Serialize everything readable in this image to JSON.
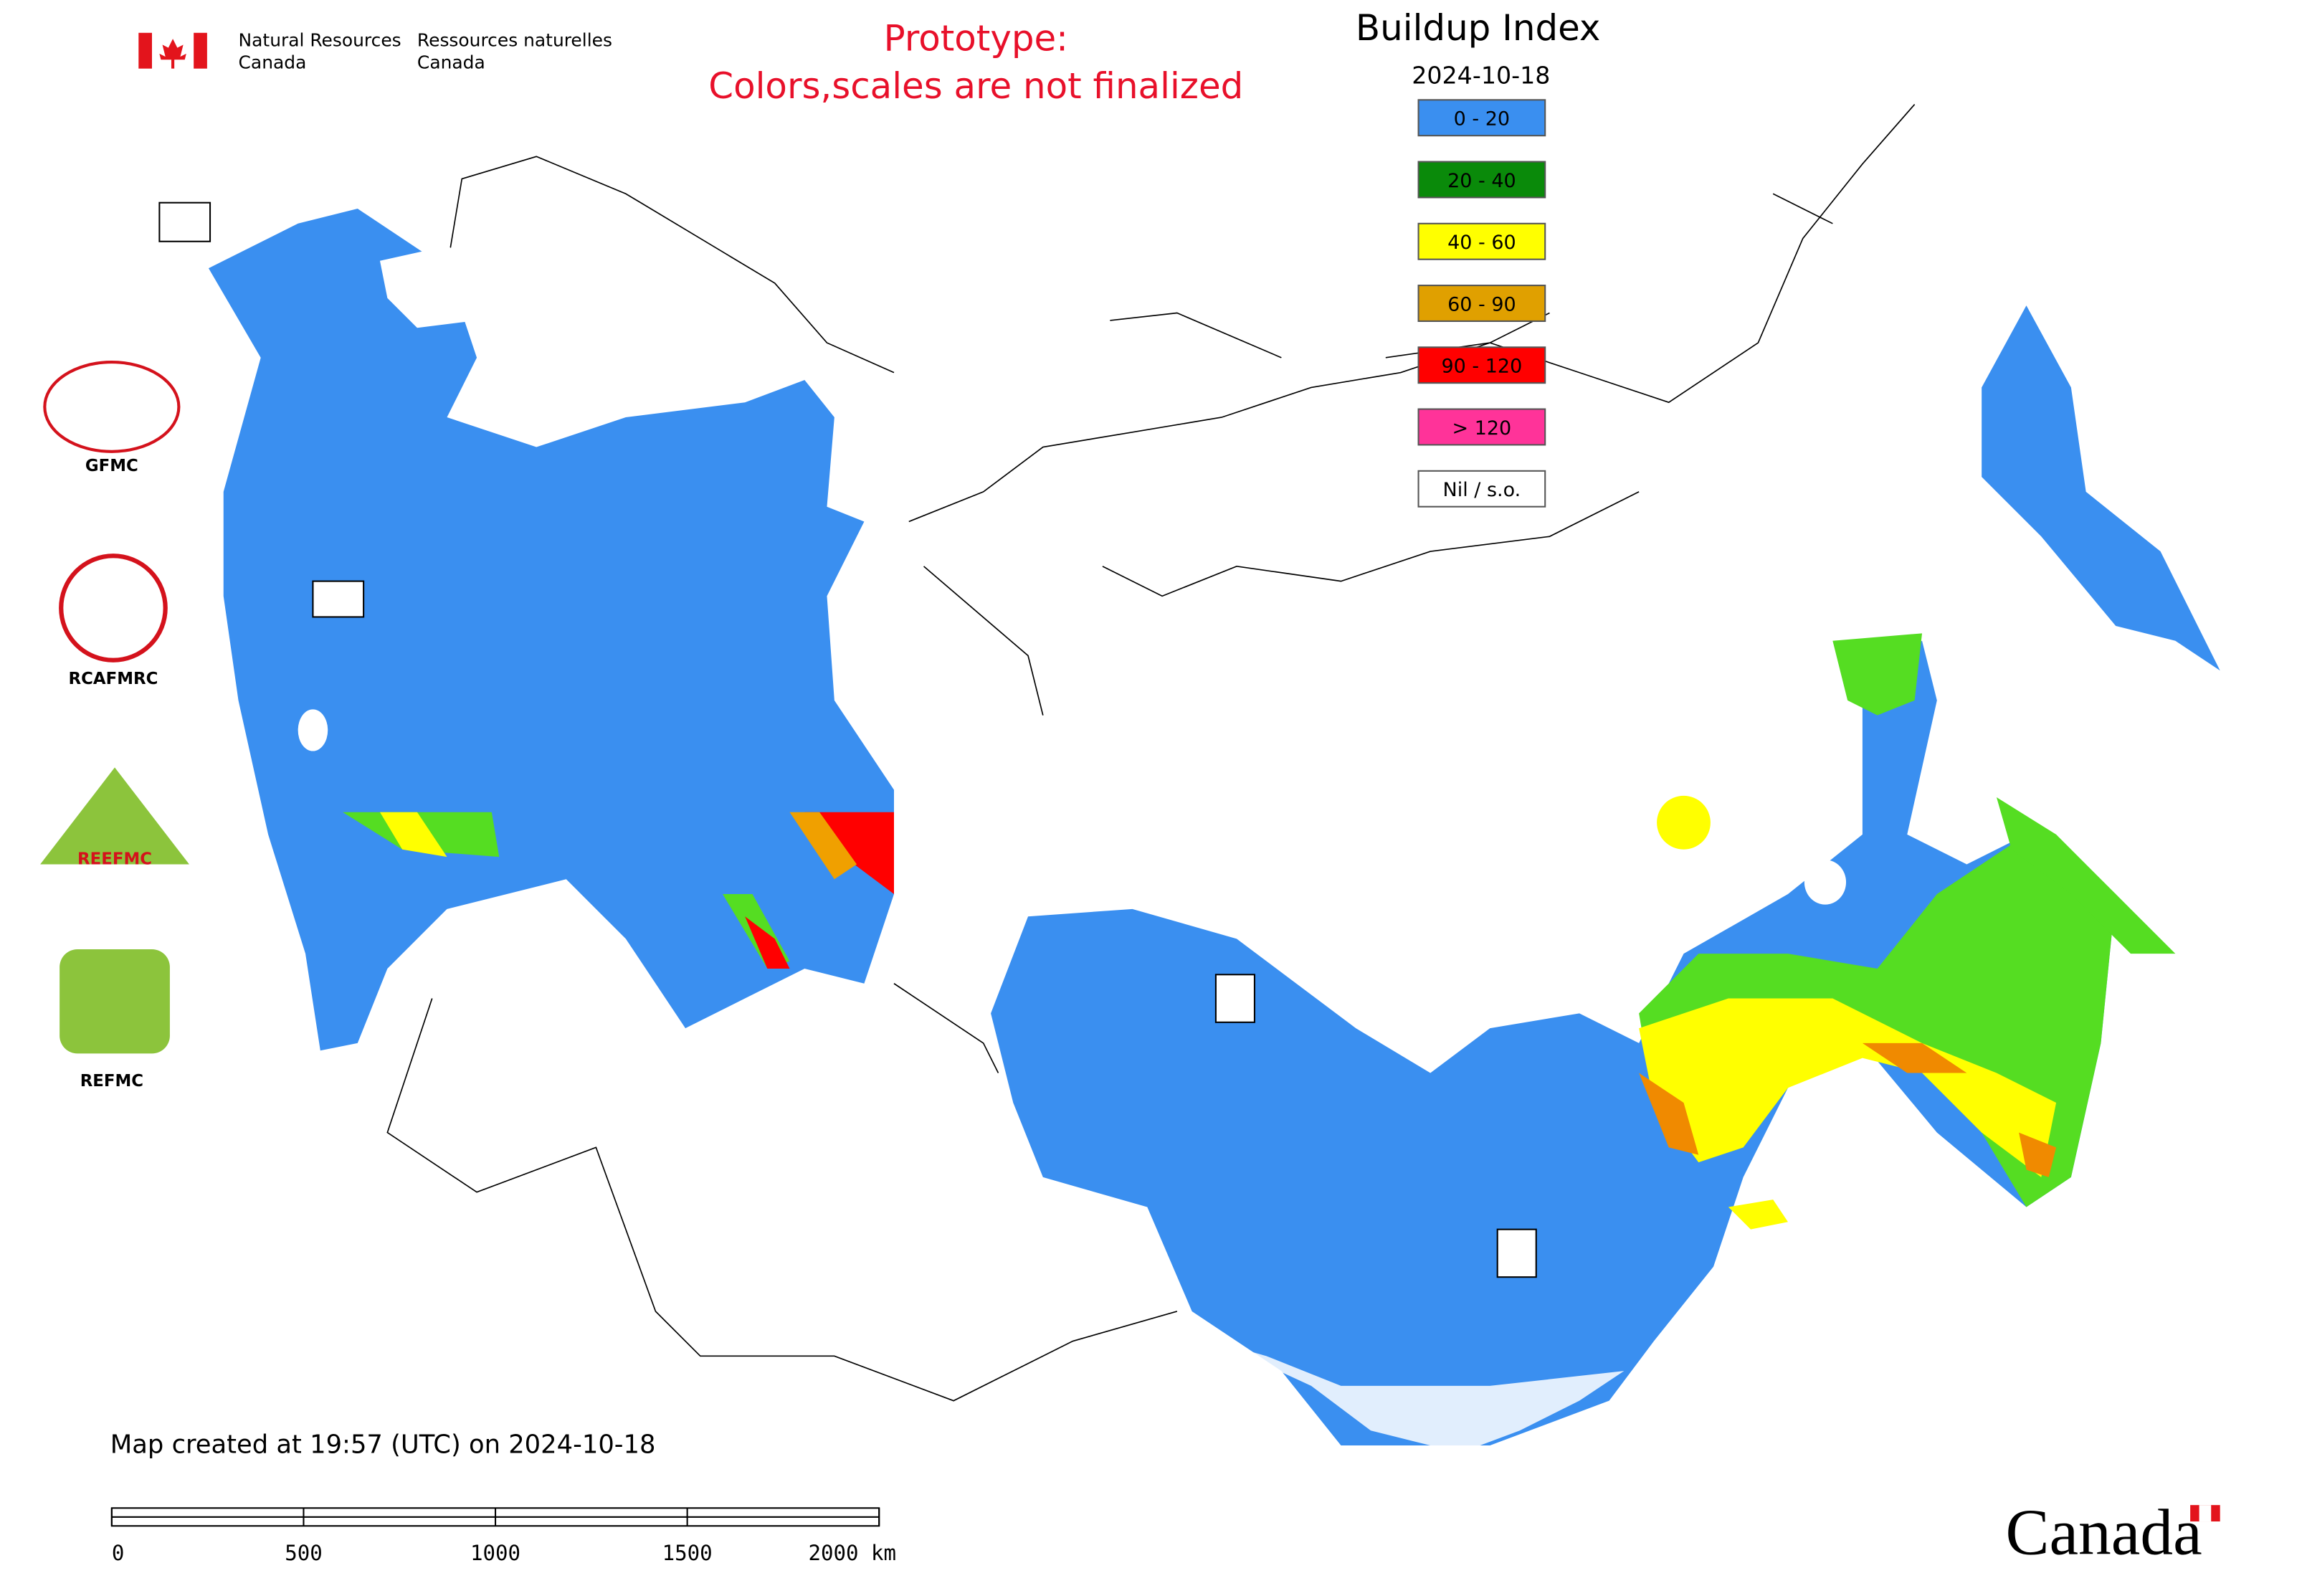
{
  "header": {
    "agency_en_1": "Natural Resources",
    "agency_en_2": "Canada",
    "agency_fr_1": "Ressources naturelles",
    "agency_fr_2": "Canada",
    "notice_1": "Prototype:",
    "notice_2": "Colors,scales are not finalized"
  },
  "map": {
    "title": "Buildup Index",
    "date": "2024-10-18",
    "legend": [
      {
        "label": "0 - 20",
        "color": "#3a8ff0"
      },
      {
        "label": "20 - 40",
        "color": "#0a8a0a"
      },
      {
        "label": "40 - 60",
        "color": "#ffff00"
      },
      {
        "label": "60 - 90",
        "color": "#e0a000"
      },
      {
        "label": "90 - 120",
        "color": "#ff0000"
      },
      {
        "label": "> 120",
        "color": "#ff3399"
      },
      {
        "label": "Nil / s.o.",
        "color": "#ffffff"
      }
    ]
  },
  "logos": [
    "GFMC",
    "RCAFMRC",
    "REEFMC",
    "REFMC"
  ],
  "footer": {
    "created": "Map created at 19:57 (UTC) on 2024-10-18",
    "scale_labels": [
      "0",
      "500",
      "1000",
      "1500",
      "2000 km"
    ],
    "wordmark": "Canada"
  }
}
